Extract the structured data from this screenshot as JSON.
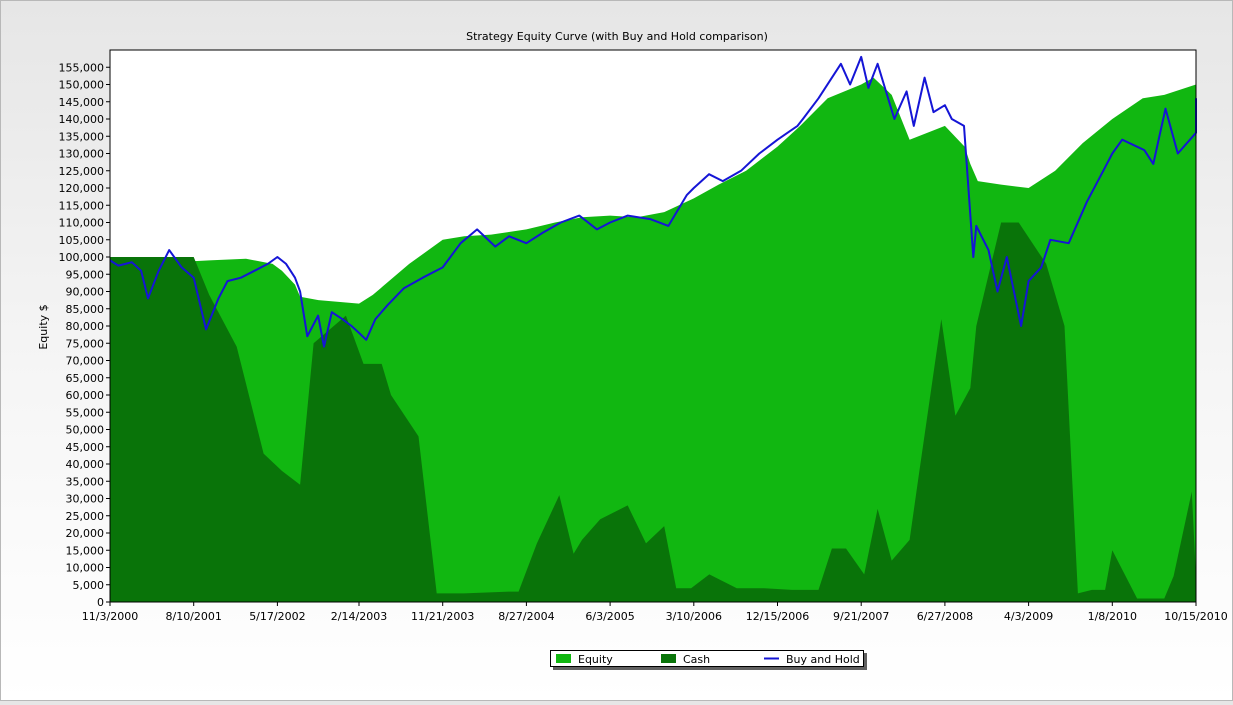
{
  "chart_data": {
    "type": "area",
    "title": "Strategy Equity Curve (with Buy and Hold comparison)",
    "xlabel": "",
    "ylabel": "Equity $",
    "ylim": [
      0,
      160000
    ],
    "grid": false,
    "legend_position": "bottom",
    "x_tick_labels": [
      "11/3/2000",
      "8/10/2001",
      "5/17/2002",
      "2/14/2003",
      "11/21/2003",
      "8/27/2004",
      "6/3/2005",
      "3/10/2006",
      "12/15/2006",
      "9/21/2007",
      "6/27/2008",
      "4/3/2009",
      "1/8/2010",
      "10/15/2010"
    ],
    "y_tick_labels": [
      "0",
      "5,000",
      "10,000",
      "15,000",
      "20,000",
      "25,000",
      "30,000",
      "35,000",
      "40,000",
      "45,000",
      "50,000",
      "55,000",
      "60,000",
      "65,000",
      "70,000",
      "75,000",
      "80,000",
      "85,000",
      "90,000",
      "95,000",
      "100,000",
      "105,000",
      "110,000",
      "115,000",
      "120,000",
      "125,000",
      "130,000",
      "135,000",
      "140,000",
      "145,000",
      "150,000",
      "155,000"
    ],
    "colors": {
      "equity": "#11b711",
      "cash": "#097409",
      "buy_and_hold": "#1515d6"
    },
    "series": [
      {
        "name": "Equity",
        "x": [
          "2000-11-03",
          "2001-02-01",
          "2001-06-01",
          "2001-10-01",
          "2002-02-01",
          "2002-05-01",
          "2002-06-01",
          "2002-07-15",
          "2002-08-01",
          "2002-10-01",
          "2003-02-14",
          "2003-04-01",
          "2003-08-01",
          "2003-11-21",
          "2004-02-01",
          "2004-05-01",
          "2004-08-27",
          "2004-12-01",
          "2005-03-01",
          "2005-06-03",
          "2005-09-01",
          "2005-12-01",
          "2006-03-10",
          "2006-06-01",
          "2006-09-01",
          "2006-12-15",
          "2007-03-01",
          "2007-06-01",
          "2007-09-21",
          "2007-11-01",
          "2008-01-01",
          "2008-03-01",
          "2008-06-27",
          "2008-09-01",
          "2008-09-20",
          "2008-10-15",
          "2009-01-01",
          "2009-04-03",
          "2009-07-01",
          "2009-10-01",
          "2010-01-08",
          "2010-04-20",
          "2010-07-01",
          "2010-10-15",
          "2010-11-10"
        ],
        "values": [
          100000,
          99000,
          98500,
          99000,
          99500,
          98000,
          96000,
          92000,
          88500,
          87500,
          86500,
          89000,
          98000,
          105000,
          106000,
          106500,
          108000,
          110000,
          111500,
          112000,
          111500,
          113000,
          117000,
          121000,
          125000,
          132000,
          138000,
          146000,
          150000,
          152000,
          147000,
          134000,
          138000,
          132000,
          127000,
          122000,
          121000,
          120000,
          125000,
          133000,
          140000,
          146000,
          147000,
          150000,
          155000
        ]
      },
      {
        "name": "Cash",
        "x": [
          "2000-11-03",
          "2001-08-10",
          "2001-10-01",
          "2002-01-01",
          "2002-04-01",
          "2002-06-01",
          "2002-08-01",
          "2002-09-15",
          "2003-01-01",
          "2003-03-01",
          "2003-05-01",
          "2003-06-01",
          "2003-09-01",
          "2003-11-01",
          "2004-02-01",
          "2004-07-01",
          "2004-08-01",
          "2004-10-01",
          "2004-12-15",
          "2005-02-01",
          "2005-03-01",
          "2005-05-01",
          "2005-08-01",
          "2005-10-01",
          "2005-12-01",
          "2006-01-10",
          "2006-03-01",
          "2006-05-01",
          "2006-08-01",
          "2006-11-01",
          "2007-02-01",
          "2007-05-01",
          "2007-06-15",
          "2007-08-01",
          "2007-10-01",
          "2007-11-15",
          "2008-01-01",
          "2008-03-01",
          "2008-04-01",
          "2008-06-15",
          "2008-08-01",
          "2008-09-20",
          "2008-10-10",
          "2009-01-01",
          "2009-03-01",
          "2009-06-01",
          "2009-08-01",
          "2009-09-15",
          "2009-11-01",
          "2009-12-15",
          "2010-01-08",
          "2010-04-01",
          "2010-07-01",
          "2010-08-01",
          "2010-10-01",
          "2010-11-10"
        ],
        "values": [
          100000,
          100000,
          89000,
          74000,
          43000,
          38000,
          34000,
          75000,
          83000,
          69000,
          69000,
          60000,
          48000,
          2500,
          2500,
          3000,
          3000,
          17000,
          31000,
          14000,
          18000,
          24000,
          28000,
          17000,
          22000,
          4000,
          4000,
          8000,
          4000,
          4000,
          3500,
          3500,
          15500,
          15500,
          8000,
          27000,
          12000,
          18000,
          37000,
          82000,
          54000,
          62000,
          80000,
          110000,
          110000,
          98000,
          80000,
          2500,
          3500,
          3500,
          15000,
          1000,
          1000,
          7500,
          32000,
          7000
        ]
      },
      {
        "name": "Buy and Hold",
        "x": [
          "2000-11-03",
          "2000-12-01",
          "2001-01-15",
          "2001-02-15",
          "2001-03-10",
          "2001-04-15",
          "2001-05-20",
          "2001-07-01",
          "2001-08-10",
          "2001-09-20",
          "2001-11-01",
          "2001-12-01",
          "2002-01-15",
          "2002-03-01",
          "2002-04-15",
          "2002-05-17",
          "2002-06-15",
          "2002-07-15",
          "2002-08-01",
          "2002-08-25",
          "2002-09-30",
          "2002-10-20",
          "2002-11-15",
          "2002-12-20",
          "2003-01-20",
          "2003-02-14",
          "2003-03-10",
          "2003-04-10",
          "2003-05-20",
          "2003-07-15",
          "2003-09-15",
          "2003-11-21",
          "2004-01-20",
          "2004-03-15",
          "2004-05-15",
          "2004-06-30",
          "2004-08-27",
          "2004-10-20",
          "2004-12-20",
          "2005-02-20",
          "2005-04-20",
          "2005-06-03",
          "2005-08-01",
          "2005-10-15",
          "2005-12-15",
          "2006-02-15",
          "2006-03-10",
          "2006-04-30",
          "2006-06-15",
          "2006-08-15",
          "2006-10-15",
          "2006-12-15",
          "2007-02-20",
          "2007-03-10",
          "2007-05-01",
          "2007-07-15",
          "2007-08-15",
          "2007-09-21",
          "2007-10-15",
          "2007-11-15",
          "2008-01-10",
          "2008-02-20",
          "2008-03-15",
          "2008-04-20",
          "2008-05-20",
          "2008-06-27",
          "2008-07-20",
          "2008-08-30",
          "2008-09-30",
          "2008-10-10",
          "2008-11-20",
          "2008-12-20",
          "2009-01-20",
          "2009-03-09",
          "2009-04-03",
          "2009-05-15",
          "2009-06-15",
          "2009-08-15",
          "2009-10-15",
          "2009-12-15",
          "2010-01-08",
          "2010-02-10",
          "2010-04-25",
          "2010-05-25",
          "2010-07-05",
          "2010-08-15",
          "2010-10-15",
          "2010-11-10"
        ],
        "values": [
          99000,
          97500,
          98500,
          96000,
          88000,
          96000,
          102000,
          97000,
          94000,
          79000,
          88000,
          93000,
          94000,
          96000,
          98000,
          100000,
          98000,
          94000,
          90000,
          77000,
          83000,
          74000,
          84000,
          82000,
          80000,
          78000,
          76000,
          82000,
          86000,
          91000,
          94000,
          97000,
          104000,
          108000,
          103000,
          106000,
          104000,
          107000,
          110000,
          112000,
          108000,
          110000,
          112000,
          111000,
          109000,
          118000,
          120000,
          124000,
          122000,
          125000,
          130000,
          134000,
          138000,
          140000,
          146000,
          156000,
          150000,
          158000,
          149000,
          156000,
          140000,
          148000,
          138000,
          152000,
          142000,
          144000,
          140000,
          138000,
          100000,
          109000,
          102000,
          90000,
          100000,
          80000,
          93000,
          97000,
          105000,
          104000,
          116000,
          126000,
          130000,
          134000,
          131000,
          127000,
          143000,
          130000,
          136000,
          146000
        ]
      }
    ]
  }
}
